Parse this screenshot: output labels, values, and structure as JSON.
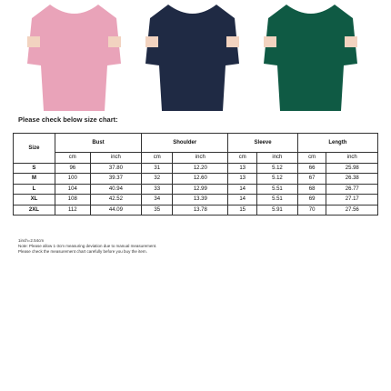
{
  "intro": "Please check below size chart:",
  "table": {
    "size_header": "Size",
    "groups": [
      "Bust",
      "Shoulder",
      "Sleeve",
      "Length"
    ],
    "units": [
      "cm",
      "inch",
      "cm",
      "inch",
      "cm",
      "inch",
      "cm",
      "inch"
    ],
    "rows": [
      [
        "S",
        "96",
        "37.80",
        "31",
        "12.20",
        "13",
        "5.12",
        "66",
        "25.98"
      ],
      [
        "M",
        "100",
        "39.37",
        "32",
        "12.60",
        "13",
        "5.12",
        "67",
        "26.38"
      ],
      [
        "L",
        "104",
        "40.94",
        "33",
        "12.99",
        "14",
        "5.51",
        "68",
        "26.77"
      ],
      [
        "XL",
        "108",
        "42.52",
        "34",
        "13.39",
        "14",
        "5.51",
        "69",
        "27.17"
      ],
      [
        "2XL",
        "112",
        "44.09",
        "35",
        "13.78",
        "15",
        "5.91",
        "70",
        "27.56"
      ]
    ]
  },
  "notes": [
    "1inch=2.54cm",
    "Note: Please allow 1-3cm measuring deviation due to manual measurement.",
    "Please check the measurement chart carefully before you buy the item."
  ]
}
